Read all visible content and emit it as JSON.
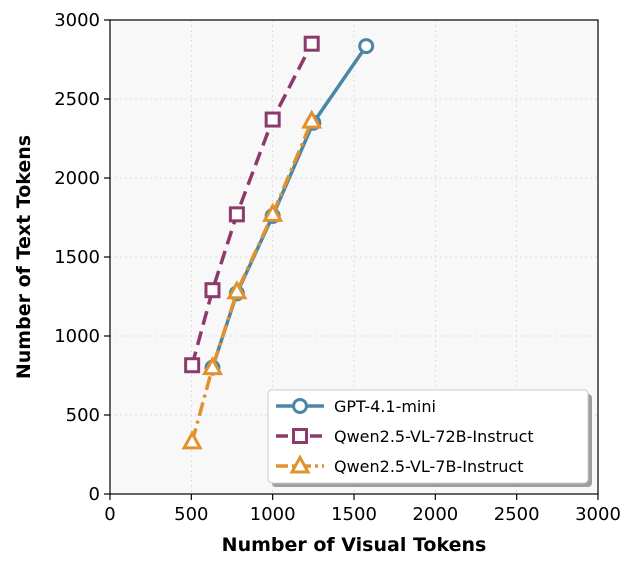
{
  "chart_data": {
    "type": "line",
    "xlabel": "Number of Visual Tokens",
    "ylabel": "Number of Text Tokens",
    "xlim": [
      0,
      3000
    ],
    "ylim": [
      0,
      3000
    ],
    "xticks": [
      "0",
      "500",
      "1000",
      "1500",
      "2000",
      "2500",
      "3000"
    ],
    "yticks": [
      "0",
      "500",
      "1000",
      "1500",
      "2000",
      "2500",
      "3000"
    ],
    "grid": true,
    "legend_position": "lower-right",
    "series": [
      {
        "name": "GPT-4.1-mini",
        "color": "#4a86a8",
        "marker": "circle",
        "line_style": "solid",
        "x": [
          630,
          780,
          1000,
          1250,
          1575
        ],
        "y": [
          800,
          1270,
          1760,
          2350,
          2835
        ]
      },
      {
        "name": "Qwen2.5-VL-72B-Instruct",
        "color": "#8c3a6b",
        "marker": "square",
        "line_style": "dashed",
        "x": [
          505,
          630,
          780,
          1000,
          1240
        ],
        "y": [
          815,
          1290,
          1770,
          2370,
          2850
        ]
      },
      {
        "name": "Qwen2.5-VL-7B-Instruct",
        "color": "#e0922e",
        "marker": "triangle",
        "line_style": "dashdot",
        "x": [
          505,
          630,
          780,
          1000,
          1240
        ],
        "y": [
          330,
          800,
          1280,
          1770,
          2360
        ]
      }
    ]
  }
}
